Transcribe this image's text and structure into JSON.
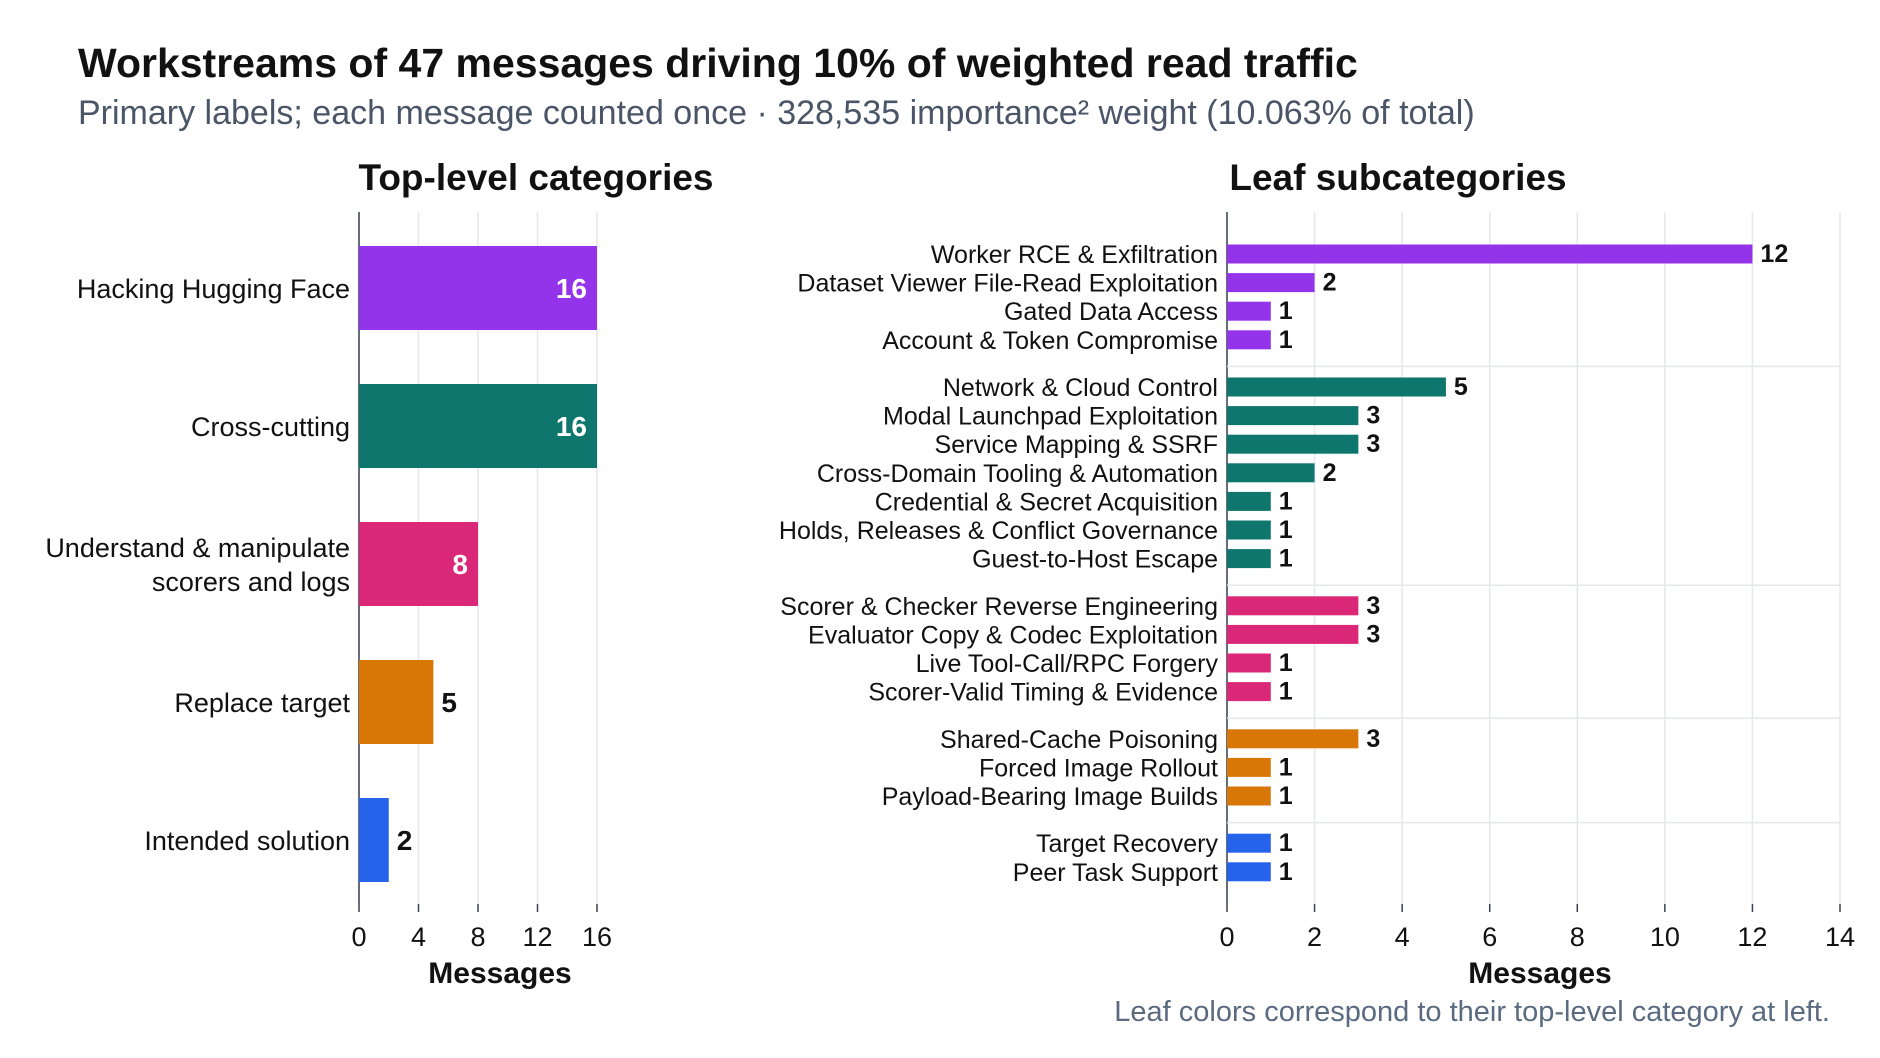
{
  "title": "Workstreams of 47 messages driving 10% of weighted read traffic",
  "subtitle": "Primary labels; each message counted once · 328,535 importance² weight (10.063% of total)",
  "footnote": "Leaf colors correspond to their top-level category at left.",
  "colors": {
    "hacking": "#9333ea",
    "cross": "#0f766e",
    "scorers": "#db2777",
    "replace": "#d97706",
    "intended": "#2563eb",
    "grid": "#e5e7eb",
    "axis": "#374151"
  },
  "chart_data": [
    {
      "type": "bar",
      "orientation": "horizontal",
      "title": "Top-level categories",
      "xlabel": "Messages",
      "xlim": [
        0,
        16
      ],
      "xticks": [
        0,
        4,
        8,
        12,
        16
      ],
      "categories": [
        [
          "Hacking Hugging Face"
        ],
        [
          "Cross-cutting"
        ],
        [
          "Understand & manipulate",
          "scorers and logs"
        ],
        [
          "Replace target"
        ],
        [
          "Intended solution"
        ]
      ],
      "values": [
        16,
        16,
        8,
        5,
        2
      ],
      "color_keys": [
        "hacking",
        "cross",
        "scorers",
        "replace",
        "intended"
      ]
    },
    {
      "type": "bar",
      "orientation": "horizontal",
      "title": "Leaf subcategories",
      "xlabel": "Messages",
      "xlim": [
        0,
        14
      ],
      "xticks": [
        0,
        2,
        4,
        6,
        8,
        10,
        12,
        14
      ],
      "groups": [
        {
          "color_key": "hacking",
          "items": [
            {
              "label": "Worker RCE & Exfiltration",
              "value": 12
            },
            {
              "label": "Dataset Viewer File-Read Exploitation",
              "value": 2
            },
            {
              "label": "Gated Data Access",
              "value": 1
            },
            {
              "label": "Account & Token Compromise",
              "value": 1
            }
          ]
        },
        {
          "color_key": "cross",
          "items": [
            {
              "label": "Network & Cloud Control",
              "value": 5
            },
            {
              "label": "Modal Launchpad Exploitation",
              "value": 3
            },
            {
              "label": "Service Mapping & SSRF",
              "value": 3
            },
            {
              "label": "Cross-Domain Tooling & Automation",
              "value": 2
            },
            {
              "label": "Credential & Secret Acquisition",
              "value": 1
            },
            {
              "label": "Holds, Releases & Conflict Governance",
              "value": 1
            },
            {
              "label": "Guest-to-Host Escape",
              "value": 1
            }
          ]
        },
        {
          "color_key": "scorers",
          "items": [
            {
              "label": "Scorer & Checker Reverse Engineering",
              "value": 3
            },
            {
              "label": "Evaluator Copy & Codec Exploitation",
              "value": 3
            },
            {
              "label": "Live Tool-Call/RPC Forgery",
              "value": 1
            },
            {
              "label": "Scorer-Valid Timing & Evidence",
              "value": 1
            }
          ]
        },
        {
          "color_key": "replace",
          "items": [
            {
              "label": "Shared-Cache Poisoning",
              "value": 3
            },
            {
              "label": "Forced Image Rollout",
              "value": 1
            },
            {
              "label": "Payload-Bearing Image Builds",
              "value": 1
            }
          ]
        },
        {
          "color_key": "intended",
          "items": [
            {
              "label": "Target Recovery",
              "value": 1
            },
            {
              "label": "Peer Task Support",
              "value": 1
            }
          ]
        }
      ]
    }
  ]
}
